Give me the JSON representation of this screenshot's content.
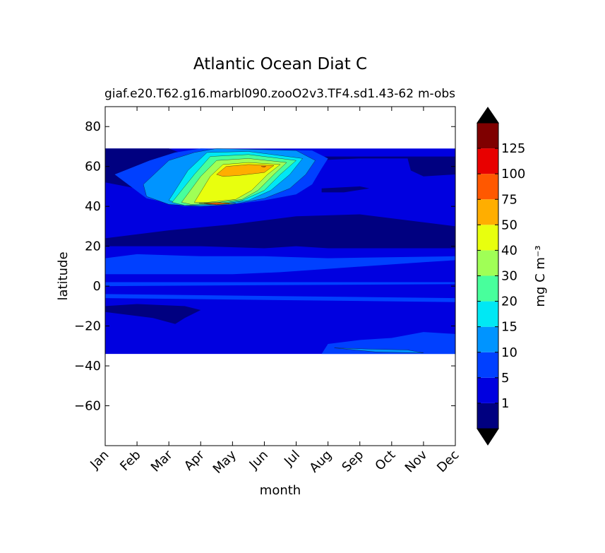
{
  "chart_data": {
    "type": "heatmap",
    "title": "Atlantic Ocean Diat C",
    "subtitle_left": "giaf.e20.T62.g16.marbl090.zooO2v3.TF4.sd1.43-62",
    "subtitle_right": "m-obs",
    "xlabel": "month",
    "ylabel": "latitude",
    "ylim": [
      -80,
      90
    ],
    "xlim": [
      0,
      11
    ],
    "x_ticks": [
      "Jan",
      "Feb",
      "Mar",
      "Apr",
      "May",
      "Jun",
      "Jul",
      "Aug",
      "Sep",
      "Oct",
      "Nov",
      "Dec"
    ],
    "y_ticks": [
      80,
      60,
      40,
      20,
      0,
      -20,
      -40,
      -60
    ],
    "y_tick_labels": [
      "80",
      "60",
      "40",
      "20",
      "0",
      "−20",
      "−40",
      "−60"
    ],
    "data_lat_range": [
      -34,
      69
    ],
    "colorbar": {
      "label": "mg C m⁻³",
      "levels": [
        0,
        1,
        5,
        10,
        15,
        20,
        30,
        40,
        50,
        75,
        100,
        125,
        150
      ],
      "tick_labels": [
        "1",
        "5",
        "10",
        "15",
        "20",
        "30",
        "40",
        "50",
        "75",
        "100",
        "125"
      ],
      "colors": [
        "#000080",
        "#0000e0",
        "#0040ff",
        "#0094ff",
        "#00e8f4",
        "#48ff9c",
        "#a0ff56",
        "#e8ff0e",
        "#ffae00",
        "#ff5800",
        "#e80000",
        "#7f0000"
      ],
      "extend_low_color": "#000000",
      "extend_high_color": "#000000"
    },
    "regions": [
      {
        "level": 1,
        "points": [
          [
            0,
            69
          ],
          [
            1,
            69
          ],
          [
            2,
            69
          ],
          [
            2.5,
            66
          ],
          [
            4,
            66
          ],
          [
            6,
            65
          ],
          [
            11,
            65
          ],
          [
            11,
            56
          ],
          [
            10,
            55
          ],
          [
            9.6,
            58
          ],
          [
            9.5,
            64
          ],
          [
            8,
            64
          ],
          [
            6.5,
            63
          ],
          [
            6.5,
            51
          ],
          [
            6,
            46
          ],
          [
            5,
            43
          ],
          [
            4,
            41
          ],
          [
            3,
            40
          ],
          [
            1.5,
            44
          ],
          [
            1.3,
            48
          ],
          [
            0,
            52
          ]
        ]
      },
      {
        "level": 1,
        "points": [
          [
            0,
            20
          ],
          [
            3,
            20
          ],
          [
            5,
            19
          ],
          [
            6,
            20
          ],
          [
            7,
            19
          ],
          [
            11,
            19
          ],
          [
            11,
            30
          ],
          [
            8,
            36
          ],
          [
            6,
            35
          ],
          [
            4,
            31
          ],
          [
            2,
            28
          ],
          [
            0,
            24
          ]
        ]
      },
      {
        "level": 1,
        "points": [
          [
            0,
            -10
          ],
          [
            1,
            -9
          ],
          [
            2.5,
            -10
          ],
          [
            3,
            -12
          ],
          [
            2.5,
            -16
          ],
          [
            2.2,
            -19
          ],
          [
            1.5,
            -16
          ],
          [
            0,
            -13
          ]
        ]
      },
      {
        "level": 1,
        "points": [
          [
            6.8,
            49
          ],
          [
            8,
            50
          ],
          [
            8.3,
            49
          ],
          [
            7.5,
            47
          ],
          [
            6.8,
            47
          ]
        ]
      },
      {
        "level": 2,
        "points": [
          [
            0,
            14
          ],
          [
            1,
            16
          ],
          [
            3,
            15
          ],
          [
            5,
            15
          ],
          [
            7,
            14
          ],
          [
            11,
            15
          ],
          [
            11,
            13
          ],
          [
            10,
            12
          ],
          [
            5.5,
            7
          ],
          [
            4,
            6
          ],
          [
            0,
            6
          ]
        ]
      },
      {
        "level": 2,
        "points": [
          [
            0,
            -34
          ],
          [
            11,
            -34
          ],
          [
            11,
            -24
          ],
          [
            10,
            -23
          ],
          [
            9,
            -26
          ],
          [
            8,
            -27
          ],
          [
            7,
            -29
          ],
          [
            6.8,
            -34
          ]
        ]
      },
      {
        "level": 2,
        "points": [
          [
            0,
            2
          ],
          [
            11,
            2
          ],
          [
            11,
            1
          ],
          [
            0,
            0
          ]
        ]
      },
      {
        "level": 2,
        "points": [
          [
            0,
            -4
          ],
          [
            11,
            -6
          ],
          [
            11,
            -8
          ],
          [
            0,
            -6
          ]
        ]
      },
      {
        "level": 2,
        "points": [
          [
            0.3,
            56
          ],
          [
            1.4,
            63
          ],
          [
            2.2,
            67
          ],
          [
            3,
            69
          ],
          [
            6.5,
            68
          ],
          [
            7,
            64
          ],
          [
            6.8,
            59
          ],
          [
            6.5,
            51
          ],
          [
            6,
            46
          ],
          [
            5,
            43
          ],
          [
            4,
            41
          ],
          [
            2.5,
            40
          ],
          [
            1.3,
            44
          ],
          [
            0.8,
            50
          ]
        ]
      },
      {
        "level": 3,
        "points": [
          [
            7.2,
            -31
          ],
          [
            8.5,
            -33
          ],
          [
            10,
            -33.5
          ],
          [
            9.5,
            -32
          ],
          [
            8.2,
            -31.5
          ]
        ]
      },
      {
        "level": 3,
        "points": [
          [
            1.2,
            51
          ],
          [
            2,
            63
          ],
          [
            2.8,
            67
          ],
          [
            3.5,
            69
          ],
          [
            6,
            68
          ],
          [
            6.6,
            63
          ],
          [
            6.3,
            56
          ],
          [
            5.8,
            49
          ],
          [
            5,
            44
          ],
          [
            4,
            41
          ],
          [
            3,
            40
          ],
          [
            2,
            41
          ],
          [
            1.3,
            45
          ]
        ]
      },
      {
        "level": 4,
        "points": [
          [
            2,
            43
          ],
          [
            2.6,
            58
          ],
          [
            3.2,
            67
          ],
          [
            4.5,
            67.5
          ],
          [
            6.2,
            64
          ],
          [
            5.8,
            56
          ],
          [
            5.2,
            48
          ],
          [
            4.5,
            43
          ],
          [
            3.5,
            41
          ],
          [
            2.5,
            40.5
          ]
        ]
      },
      {
        "level": 5,
        "points": [
          [
            2.1,
            42
          ],
          [
            2.8,
            56
          ],
          [
            3.3,
            65
          ],
          [
            4.5,
            66
          ],
          [
            6,
            63
          ],
          [
            5.5,
            56
          ],
          [
            5,
            48
          ],
          [
            4.3,
            43
          ],
          [
            3.3,
            41
          ],
          [
            2.5,
            40.5
          ]
        ]
      },
      {
        "level": 6,
        "points": [
          [
            2.4,
            42
          ],
          [
            3,
            55
          ],
          [
            3.5,
            63
          ],
          [
            4.5,
            64
          ],
          [
            5.7,
            62
          ],
          [
            5.3,
            56
          ],
          [
            4.8,
            48
          ],
          [
            4.3,
            43.5
          ],
          [
            3.3,
            41.5
          ],
          [
            2.7,
            41
          ]
        ]
      },
      {
        "level": 7,
        "points": [
          [
            2.8,
            42
          ],
          [
            3.3,
            55
          ],
          [
            3.7,
            61
          ],
          [
            4.5,
            62
          ],
          [
            5.5,
            61
          ],
          [
            5.1,
            56
          ],
          [
            4.6,
            48
          ],
          [
            4.1,
            43.5
          ],
          [
            3.2,
            42
          ]
        ]
      },
      {
        "level": 8,
        "points": [
          [
            3.5,
            56
          ],
          [
            3.8,
            60
          ],
          [
            4.5,
            61
          ],
          [
            5.3,
            60.5
          ],
          [
            5,
            57
          ],
          [
            4.2,
            55.5
          ],
          [
            3.7,
            55
          ]
        ]
      },
      {
        "level": 8,
        "points": [
          [
            2.95,
            41.5
          ],
          [
            3.5,
            42
          ],
          [
            4.1,
            41.5
          ],
          [
            3.5,
            40.8
          ]
        ]
      },
      {
        "level": 9,
        "points": [
          [
            4.9,
            60
          ],
          [
            5.05,
            60.1
          ],
          [
            5,
            59.6
          ]
        ]
      },
      {
        "level": 9,
        "points": [
          [
            3.1,
            41.5
          ],
          [
            3.5,
            41.7
          ],
          [
            3.9,
            41.3
          ],
          [
            3.5,
            41
          ]
        ]
      }
    ]
  }
}
